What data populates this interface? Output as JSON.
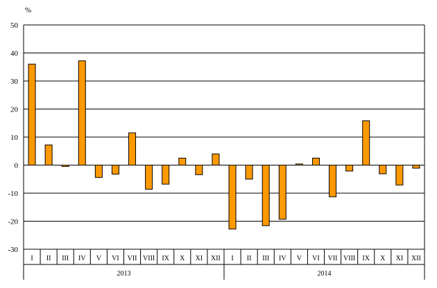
{
  "chart_data": {
    "type": "bar",
    "unit_label": "%",
    "ylim": [
      -30,
      50
    ],
    "yticks": [
      50,
      40,
      30,
      20,
      10,
      0,
      -10,
      -20,
      -30
    ],
    "grid": true,
    "bar_color": "#FF9900",
    "groups": [
      {
        "label": "2013",
        "categories": [
          "I",
          "II",
          "III",
          "IV",
          "V",
          "VI",
          "VII",
          "VIII",
          "IX",
          "X",
          "XI",
          "XII"
        ],
        "values": [
          36.0,
          7.2,
          -0.5,
          37.2,
          -4.4,
          -3.2,
          11.5,
          -8.6,
          -6.8,
          2.5,
          -3.4,
          4.0
        ]
      },
      {
        "label": "2014",
        "categories": [
          "I",
          "II",
          "III",
          "IV",
          "V",
          "VI",
          "VII",
          "VIII",
          "IX",
          "X",
          "XI",
          "XII"
        ],
        "values": [
          -22.8,
          -5.0,
          -21.6,
          -19.3,
          0.4,
          2.5,
          -11.3,
          -2.1,
          15.8,
          -3.1,
          -7.1,
          -1.1
        ]
      }
    ]
  }
}
